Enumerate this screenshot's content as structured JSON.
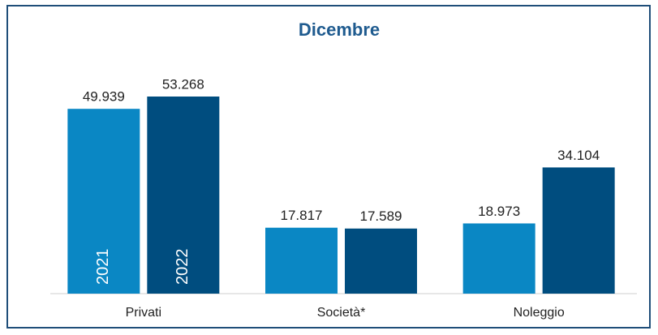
{
  "chart_data": {
    "type": "bar",
    "title": "Dicembre",
    "categories": [
      "Privati",
      "Società*",
      "Noleggio"
    ],
    "series": [
      {
        "name": "2021",
        "color": "#0a87c4",
        "values": [
          49939,
          17817,
          18973
        ],
        "value_labels": [
          "49.939",
          "17.817",
          "18.973"
        ]
      },
      {
        "name": "2022",
        "color": "#004d7f",
        "values": [
          53268,
          17589,
          34104
        ],
        "value_labels": [
          "53.268",
          "17.589",
          "34.104"
        ]
      }
    ]
  }
}
